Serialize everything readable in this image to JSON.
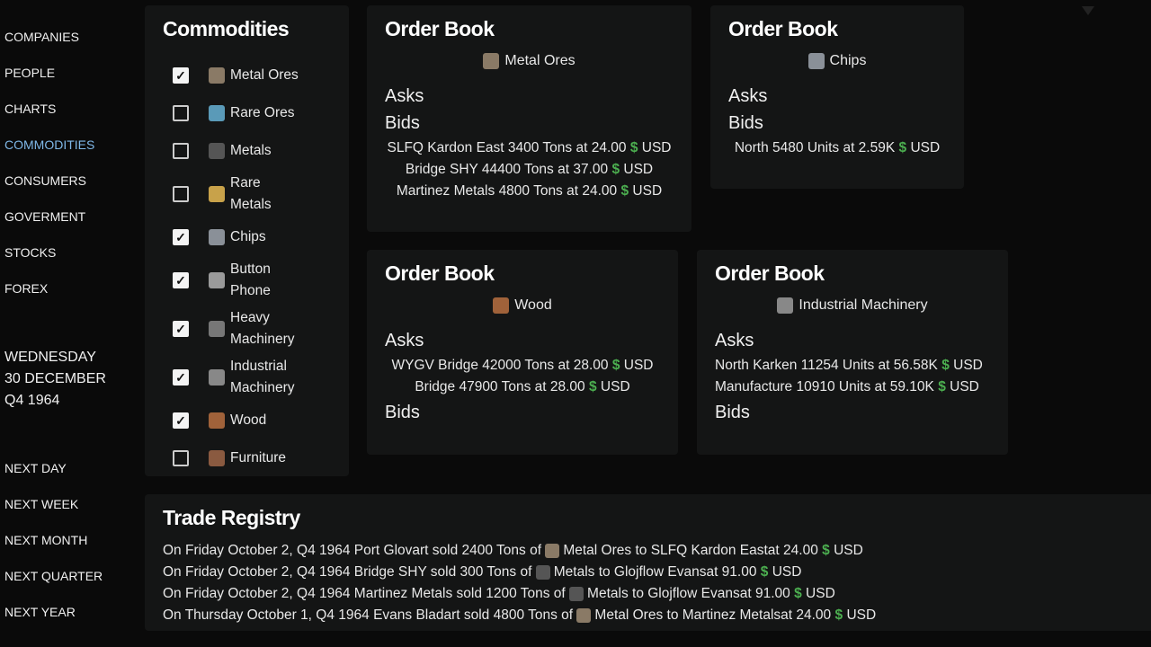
{
  "nav": [
    "Companies",
    "People",
    "Charts",
    "Commodities",
    "Consumers",
    "Goverment",
    "Stocks",
    "Forex"
  ],
  "nav_active": "Commodities",
  "date": {
    "day": "WEDNESDAY",
    "date": "30 DECEMBER",
    "quarter": "Q4 1964"
  },
  "time_nav": [
    "Next Day",
    "Next Week",
    "Next Month",
    "Next Quarter",
    "Next Year"
  ],
  "commodities": {
    "title": "Commodities",
    "items": [
      {
        "label": "Metal Ores",
        "checked": true,
        "icon": "metal-ores-icon",
        "color": "#8a7a66"
      },
      {
        "label": "Rare Ores",
        "checked": false,
        "icon": "rare-ores-icon",
        "color": "#5a9ab8"
      },
      {
        "label": "Metals",
        "checked": false,
        "icon": "metals-icon",
        "color": "#555"
      },
      {
        "label": "Rare Metals",
        "checked": false,
        "icon": "rare-metals-icon",
        "color": "#c8a24a"
      },
      {
        "label": "Chips",
        "checked": true,
        "icon": "chips-icon",
        "color": "#8a9098"
      },
      {
        "label": "Button Phone",
        "checked": true,
        "icon": "button-phone-icon",
        "color": "#9a9a9a"
      },
      {
        "label": "Heavy Machinery",
        "checked": true,
        "icon": "heavy-machinery-icon",
        "color": "#777"
      },
      {
        "label": "Industrial Machinery",
        "checked": true,
        "icon": "industrial-machinery-icon",
        "color": "#888"
      },
      {
        "label": "Wood",
        "checked": true,
        "icon": "wood-icon",
        "color": "#a0623a"
      },
      {
        "label": "Furniture",
        "checked": false,
        "icon": "furniture-icon",
        "color": "#8a5a40"
      }
    ]
  },
  "order_books": [
    {
      "title": "Order Book",
      "product": "Metal Ores",
      "icon": "metal-ores-icon",
      "color": "#8a7a66",
      "asks_label": "Asks",
      "bids_label": "Bids",
      "asks": [],
      "bids": [
        {
          "who": "SLFQ Kardon East",
          "qty": "3400 Tons",
          "price": "at 24.00",
          "cur": "USD"
        },
        {
          "who": "Bridge SHY",
          "qty": "44400 Tons",
          "price": "at 37.00",
          "cur": "USD"
        },
        {
          "who": "Martinez Metals",
          "qty": "4800 Tons",
          "price": "at 24.00",
          "cur": "USD"
        }
      ]
    },
    {
      "title": "Order Book",
      "product": "Chips",
      "icon": "chips-icon",
      "color": "#8a9098",
      "asks_label": "Asks",
      "bids_label": "Bids",
      "asks": [],
      "bids": [
        {
          "who": "North",
          "qty": "5480 Units",
          "price": "at 2.59K",
          "cur": "USD"
        }
      ]
    },
    {
      "title": "Order Book",
      "product": "Wood",
      "icon": "wood-icon",
      "color": "#a0623a",
      "asks_label": "Asks",
      "bids_label": "Bids",
      "asks": [
        {
          "who": "WYGV Bridge",
          "qty": "42000 Tons",
          "price": "at 28.00",
          "cur": "USD"
        },
        {
          "who": "Bridge",
          "qty": "47900 Tons",
          "price": "at 28.00",
          "cur": "USD"
        }
      ],
      "bids": []
    },
    {
      "title": "Order Book",
      "product": "Industrial Machinery",
      "icon": "industrial-machinery-icon",
      "color": "#888",
      "asks_label": "Asks",
      "bids_label": "Bids",
      "asks": [
        {
          "who": "North Karken",
          "qty": "11254 Units",
          "price": "at 56.58K",
          "cur": "USD"
        },
        {
          "who": "Manufacture",
          "qty": "10910 Units",
          "price": "at 59.10K",
          "cur": "USD"
        }
      ],
      "bids": []
    }
  ],
  "trade_registry": {
    "title": "Trade Registry",
    "rows": [
      {
        "pre": "On Friday October 2, Q4 1964 Port Glovart sold  2400 Tons of",
        "product": "Metal Ores",
        "icon": "metal-ores-icon",
        "color": "#8a7a66",
        "post": " to SLFQ Kardon Eastat 24.00",
        "cur": "USD"
      },
      {
        "pre": "On Friday October 2, Q4 1964 Bridge SHY sold  300 Tons of",
        "product": "Metals",
        "icon": "metals-icon",
        "color": "#555",
        "post": " to Glojflow Evansat 91.00",
        "cur": "USD"
      },
      {
        "pre": "On Friday October 2, Q4 1964 Martinez Metals sold  1200 Tons of",
        "product": "Metals",
        "icon": "metals-icon",
        "color": "#555",
        "post": " to Glojflow Evansat 91.00",
        "cur": "USD"
      },
      {
        "pre": "On Thursday October 1, Q4 1964 Evans Bladart sold  4800 Tons of",
        "product": "Metal Ores",
        "icon": "metal-ores-icon",
        "color": "#8a7a66",
        "post": " to Martinez Metalsat 24.00",
        "cur": "USD"
      }
    ]
  },
  "currency_symbol": "$"
}
